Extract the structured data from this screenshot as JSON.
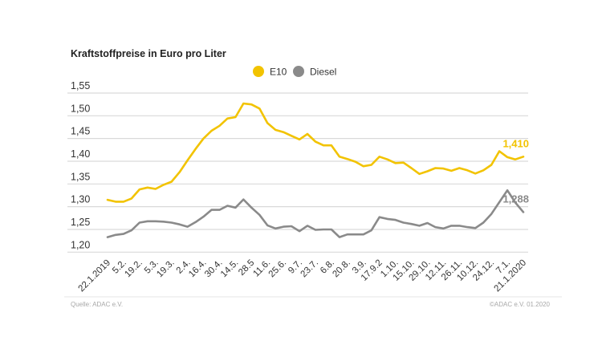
{
  "chart_data": {
    "type": "line",
    "title": "Kraftstoffpreise in Euro pro Liter",
    "xlabel": "",
    "ylabel": "",
    "ylim": [
      1.2,
      1.55
    ],
    "yticks": [
      "1,20",
      "1,25",
      "1,30",
      "1,35",
      "1,40",
      "1,45",
      "1,50",
      "1,55"
    ],
    "ytick_values": [
      1.2,
      1.25,
      1.3,
      1.35,
      1.4,
      1.45,
      1.5,
      1.55
    ],
    "grid": true,
    "legend_position": "top-center",
    "x_tick_labels": [
      "22.1.2019",
      "5.2.",
      "19.2.",
      "5.3.",
      "19.3.",
      "2.4.",
      "16.4.",
      "30.4.",
      "14.5.",
      "28.5",
      "11.6.",
      "25.6.",
      "9.7.",
      "23.7.",
      "6.8.",
      "20.8.",
      "3.9.",
      "17.9.2",
      "1.10.",
      "15.10.",
      "29.10.",
      "12.11.",
      "26.11.",
      "10.12.",
      "24.12.",
      "7.1.",
      "21.1.2020"
    ],
    "x_tick_every_n_points": 2,
    "series": [
      {
        "name": "E10",
        "color": "#F2C300",
        "end_label": "1,410",
        "values": [
          1.315,
          1.311,
          1.311,
          1.318,
          1.338,
          1.342,
          1.339,
          1.348,
          1.355,
          1.376,
          1.402,
          1.427,
          1.45,
          1.467,
          1.478,
          1.494,
          1.497,
          1.527,
          1.525,
          1.516,
          1.484,
          1.469,
          1.464,
          1.456,
          1.448,
          1.46,
          1.443,
          1.435,
          1.435,
          1.41,
          1.405,
          1.399,
          1.389,
          1.392,
          1.41,
          1.404,
          1.396,
          1.397,
          1.385,
          1.372,
          1.378,
          1.385,
          1.384,
          1.379,
          1.385,
          1.38,
          1.373,
          1.38,
          1.392,
          1.422,
          1.409,
          1.404,
          1.41
        ]
      },
      {
        "name": "Diesel",
        "color": "#8A8A8A",
        "end_label": "1,288",
        "values": [
          1.233,
          1.238,
          1.24,
          1.248,
          1.265,
          1.268,
          1.268,
          1.267,
          1.265,
          1.261,
          1.256,
          1.266,
          1.278,
          1.293,
          1.293,
          1.302,
          1.298,
          1.316,
          1.298,
          1.282,
          1.259,
          1.252,
          1.256,
          1.257,
          1.246,
          1.258,
          1.249,
          1.25,
          1.25,
          1.233,
          1.239,
          1.239,
          1.239,
          1.248,
          1.277,
          1.273,
          1.271,
          1.265,
          1.262,
          1.258,
          1.264,
          1.255,
          1.252,
          1.258,
          1.258,
          1.255,
          1.253,
          1.265,
          1.284,
          1.31,
          1.336,
          1.309,
          1.288
        ]
      }
    ]
  },
  "footer": {
    "source": "Quelle: ADAC e.V.",
    "copyright": "©ADAC e.V.  01.2020"
  }
}
